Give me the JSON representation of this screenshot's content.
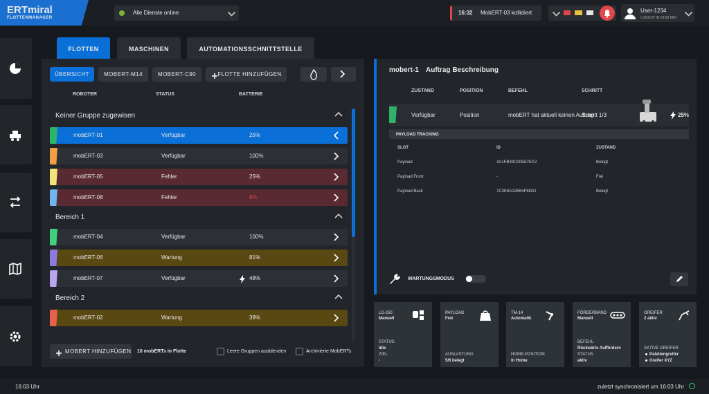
{
  "header": {
    "logo": "ERTmiral",
    "logo_subtitle": "FLOTTENMANAGER",
    "services_status": "Alle Dienste online",
    "alert_time": "16:32",
    "alert_message": "MobERT-03 kollidiert",
    "user_name": "User-1234",
    "logout_info": "LOGOUT IN 09:59 MIN"
  },
  "tabs": [
    {
      "label": "FLOTTEN",
      "active": true
    },
    {
      "label": "MASCHINEN"
    },
    {
      "label": "AUTOMATIONSSCHNITTSTELLE"
    }
  ],
  "fleet": {
    "subtabs": [
      {
        "label": "ÜBERSICHT",
        "active": true
      },
      {
        "label": "MOBERT-M14"
      },
      {
        "label": "MOBERT-C90"
      },
      {
        "label": "FLOTTE HINZUFÜGEN",
        "plus": true
      }
    ],
    "columns": [
      "ROBOTER",
      "STATUS",
      "BATTERIE"
    ],
    "groups": [
      {
        "name": "Keiner Gruppe zugewisen",
        "rows": [
          {
            "name": "mobERT-01",
            "status": "Verfügbar",
            "battery": "25%",
            "color": "#2fb36a",
            "row_color": "#0a6fd6",
            "selected": true
          },
          {
            "name": "mobERT-03",
            "status": "Verfügbar",
            "battery": "100%",
            "color": "#f0a040",
            "row_color": "#2c3036"
          },
          {
            "name": "mobERT-05",
            "status": "Fehler",
            "battery": "25%",
            "color": "#f3e27a",
            "row_color": "#5a2a33"
          },
          {
            "name": "mobERT-08",
            "status": "Fehler",
            "battery": "8%",
            "color": "#6fb6f0",
            "row_color": "#5a2a33",
            "battery_color": "#d04a4a"
          }
        ]
      },
      {
        "name": "Bereich 1",
        "rows": [
          {
            "name": "mobERT-04",
            "status": "Verfügbar",
            "battery": "100%",
            "color": "#3fd27a",
            "row_color": "#2c3036"
          },
          {
            "name": "mobERT-06",
            "status": "Wartung",
            "battery": "81%",
            "color": "#8f7ae0",
            "row_color": "#5a4812"
          },
          {
            "name": "mobERT-07",
            "status": "Verfügbar",
            "battery": "48%",
            "color": "#b9a6ef",
            "row_color": "#2c3036",
            "charging": true
          }
        ]
      },
      {
        "name": "Bereich 2",
        "rows": [
          {
            "name": "mobERT-02",
            "status": "Wartung",
            "battery": "39%",
            "color": "#e8604c",
            "row_color": "#5a4812"
          }
        ]
      }
    ],
    "add_button": "MOBERT HINZUFÜGEN",
    "count": "10 mobERTs in Flotte",
    "hide_empty": "Leere Gruppen ausblenden",
    "archived": "Archivierte MobERTs"
  },
  "detail": {
    "robot": "mobert-1",
    "title": "Auftrag Beschreibung",
    "columns": [
      "ZUSTAND",
      "POSITION",
      "BEFEHL",
      "SCHRITT"
    ],
    "row": {
      "zustand": "Verfügbar",
      "position": "Position",
      "befehl": "mobERT hat aktuell keinen Auftrag",
      "schritt": "Schritt 1/3",
      "battery": "25%",
      "color": "#2fb36a"
    },
    "payload_title": "PAYLOAD TRACKING",
    "payload_columns": [
      "SLOT",
      "ID",
      "ZUSTAND"
    ],
    "payload_rows": [
      [
        "Payload",
        "4A1FB39C005D7EA2",
        "Belegt"
      ],
      [
        "Payload Front",
        "-",
        "Frei"
      ],
      [
        "Payload Back",
        "7C3E9A12B64F8D01",
        "Belegt"
      ]
    ],
    "maintenance": "WARTUNGSMODUS"
  },
  "cards": [
    {
      "title": "LD-250",
      "subtitle": "Manuell",
      "fields": [
        {
          "label": "STATUS",
          "value": "Idle"
        },
        {
          "label": "ZIEL",
          "value": "-"
        }
      ]
    },
    {
      "title": "PAYLOAD",
      "subtitle": "Frei",
      "fields": [
        {
          "label": "AUSLASTUNG",
          "value": "5/6 belegt"
        }
      ]
    },
    {
      "title": "TM-14",
      "subtitle": "Automatik",
      "fields": [
        {
          "label": "HOME-POSITION",
          "value": "in Home"
        }
      ]
    },
    {
      "title": "FÖRDERBAND",
      "subtitle": "Manuell",
      "fields": [
        {
          "label": "BEFEHL",
          "value": "Rückwärts Auffördern"
        },
        {
          "label": "STATUS",
          "value": "aktiv"
        }
      ]
    },
    {
      "title": "GREIFER",
      "subtitle": "2 aktiv",
      "fields": [
        {
          "label": "AKTIVE GREIFER",
          "items": [
            "Palettengreifer",
            "Greifer XYZ"
          ]
        }
      ]
    }
  ],
  "footer": {
    "time": "16:03 Uhr",
    "sync": "zuletzt synchronisiert um 16:03 Uhr"
  }
}
